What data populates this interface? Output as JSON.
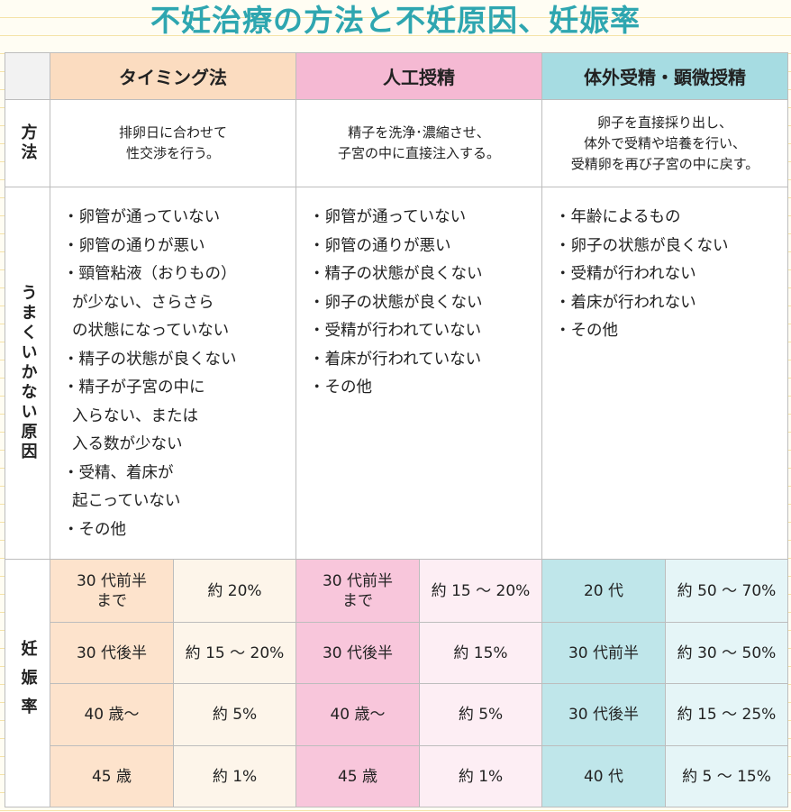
{
  "title": "不妊治療の方法と不妊原因、妊娠率",
  "table": {
    "columns": [
      "タイミング法",
      "人工授精",
      "体外受精・顕微授精"
    ],
    "row_labels": {
      "method": "方法",
      "causes": "うまくいかない原因",
      "rates": "妊娠率"
    },
    "method": [
      "排卵日に合わせて\n性交渉を行う。",
      "精子を洗浄･濃縮させ、\n子宮の中に直接注入する。",
      "卵子を直接採り出し、\n体外で受精や培養を行い、\n受精卵を再び子宮の中に戻す。"
    ],
    "causes": [
      [
        [
          "・卵管が通っていない"
        ],
        [
          "・卵管の通りが悪い"
        ],
        [
          "・頸管粘液（おりもの）",
          "が少ない、さらさら",
          "の状態になっていない"
        ],
        [
          "・精子の状態が良くない"
        ],
        [
          "・精子が子宮の中に",
          "入らない、または",
          "入る数が少ない"
        ],
        [
          "・受精、着床が",
          "起こっていない"
        ],
        [
          "・その他"
        ]
      ],
      [
        [
          "・卵管が通っていない"
        ],
        [
          "・卵管の通りが悪い"
        ],
        [
          "・精子の状態が良くない"
        ],
        [
          "・卵子の状態が良くない"
        ],
        [
          "・受精が行われていない"
        ],
        [
          "・着床が行われていない"
        ],
        [
          "・その他"
        ]
      ],
      [
        [
          "・年齢によるもの"
        ],
        [
          "・卵子の状態が良くない"
        ],
        [
          "・受精が行われない"
        ],
        [
          "・着床が行われない"
        ],
        [
          "・その他"
        ]
      ]
    ],
    "rates": [
      [
        [
          "30 代前半\nまで",
          "約 20%"
        ],
        [
          "30 代後半",
          "約 15 ～ 20%"
        ],
        [
          "40 歳～",
          "約 5%"
        ],
        [
          "45 歳",
          "約 1%"
        ]
      ],
      [
        [
          "30 代前半\nまで",
          "約 15 ～ 20%"
        ],
        [
          "30 代後半",
          "約 15%"
        ],
        [
          "40 歳～",
          "約 5%"
        ],
        [
          "45 歳",
          "約 1%"
        ]
      ],
      [
        [
          "20 代",
          "約 50 ～ 70%"
        ],
        [
          "30 代前半",
          "約 30 ～ 50%"
        ],
        [
          "30 代後半",
          "約 15 ～ 25%"
        ],
        [
          "40 代",
          "約 5 ～ 15%"
        ]
      ]
    ]
  }
}
